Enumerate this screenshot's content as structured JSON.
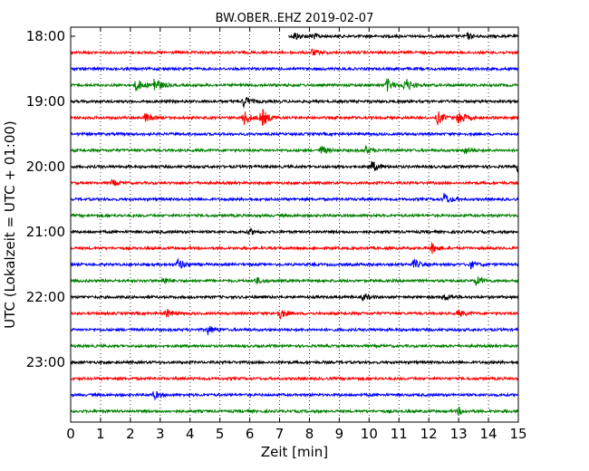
{
  "chart_data": {
    "type": "line",
    "title": "BW.OBER..EHZ 2019-02-07",
    "xlabel": "Zeit  [min]",
    "ylabel": "UTC (Lokalzeit = UTC + 01:00)",
    "xlim": [
      0,
      15
    ],
    "x_ticks": [
      0,
      1,
      2,
      3,
      4,
      5,
      6,
      7,
      8,
      9,
      10,
      11,
      12,
      13,
      14,
      15
    ],
    "x_tick_labels": [
      "0",
      "1",
      "2",
      "3",
      "4",
      "5",
      "6",
      "7",
      "8",
      "9",
      "10",
      "11",
      "12",
      "13",
      "14",
      "15"
    ],
    "y_tick_labels": [
      "18:00",
      "19:00",
      "20:00",
      "21:00",
      "22:00",
      "23:00"
    ],
    "grid": "vertical dotted",
    "colors": [
      "#000000",
      "#ff0000",
      "#0000ff",
      "#008000"
    ],
    "series": [
      {
        "start": "18:00",
        "color": "#000000",
        "x_start": 7.3,
        "events": [
          {
            "x": 7.5,
            "amp": 0.4
          },
          {
            "x": 8.1,
            "amp": 0.3
          },
          {
            "x": 13.3,
            "amp": 0.25
          }
        ]
      },
      {
        "start": "18:15",
        "color": "#ff0000",
        "x_start": 0,
        "events": [
          {
            "x": 8.1,
            "amp": 0.3
          }
        ]
      },
      {
        "start": "18:30",
        "color": "#0000ff",
        "x_start": 0,
        "events": []
      },
      {
        "start": "18:45",
        "color": "#008000",
        "x_start": 0,
        "events": [
          {
            "x": 2.2,
            "amp": 0.6
          },
          {
            "x": 2.8,
            "amp": 0.8
          },
          {
            "x": 10.6,
            "amp": 0.6
          },
          {
            "x": 11.2,
            "amp": 0.7
          }
        ]
      },
      {
        "start": "19:00",
        "color": "#000000",
        "x_start": 0,
        "events": [
          {
            "x": 5.8,
            "amp": 0.5
          }
        ]
      },
      {
        "start": "19:15",
        "color": "#ff0000",
        "x_start": 0,
        "events": [
          {
            "x": 2.5,
            "amp": 0.4
          },
          {
            "x": 5.8,
            "amp": 0.7
          },
          {
            "x": 6.4,
            "amp": 0.9
          },
          {
            "x": 12.3,
            "amp": 0.6
          },
          {
            "x": 13.0,
            "amp": 0.7
          }
        ]
      },
      {
        "start": "19:30",
        "color": "#0000ff",
        "x_start": 0,
        "events": []
      },
      {
        "start": "19:45",
        "color": "#008000",
        "x_start": 0,
        "events": [
          {
            "x": 8.4,
            "amp": 0.4
          },
          {
            "x": 9.9,
            "amp": 0.3
          },
          {
            "x": 13.2,
            "amp": 0.35
          }
        ]
      },
      {
        "start": "20:00",
        "color": "#000000",
        "x_start": 0,
        "events": [
          {
            "x": 10.1,
            "amp": 0.5
          },
          {
            "x": 15.0,
            "amp": 0.6
          }
        ]
      },
      {
        "start": "20:15",
        "color": "#ff0000",
        "x_start": 0,
        "events": [
          {
            "x": 1.4,
            "amp": 0.25
          }
        ]
      },
      {
        "start": "20:30",
        "color": "#0000ff",
        "x_start": 0,
        "events": [
          {
            "x": 12.5,
            "amp": 0.6
          }
        ]
      },
      {
        "start": "20:45",
        "color": "#008000",
        "x_start": 0,
        "events": []
      },
      {
        "start": "21:00",
        "color": "#000000",
        "x_start": 0,
        "events": [
          {
            "x": 6.0,
            "amp": 0.25
          }
        ]
      },
      {
        "start": "21:15",
        "color": "#ff0000",
        "x_start": 0,
        "events": [
          {
            "x": 12.1,
            "amp": 0.45
          }
        ]
      },
      {
        "start": "21:30",
        "color": "#0000ff",
        "x_start": 0,
        "events": [
          {
            "x": 3.6,
            "amp": 0.5
          },
          {
            "x": 11.5,
            "amp": 0.4
          },
          {
            "x": 13.4,
            "amp": 0.3
          }
        ]
      },
      {
        "start": "21:45",
        "color": "#008000",
        "x_start": 0,
        "events": [
          {
            "x": 3.1,
            "amp": 0.3
          },
          {
            "x": 6.2,
            "amp": 0.3
          },
          {
            "x": 13.6,
            "amp": 0.4
          }
        ]
      },
      {
        "start": "22:00",
        "color": "#000000",
        "x_start": 0,
        "events": [
          {
            "x": 9.8,
            "amp": 0.3
          },
          {
            "x": 12.5,
            "amp": 0.35
          }
        ]
      },
      {
        "start": "22:15",
        "color": "#ff0000",
        "x_start": 0,
        "events": [
          {
            "x": 3.2,
            "amp": 0.4
          },
          {
            "x": 7.0,
            "amp": 0.5
          },
          {
            "x": 13.0,
            "amp": 0.3
          }
        ]
      },
      {
        "start": "22:30",
        "color": "#0000ff",
        "x_start": 0,
        "events": [
          {
            "x": 4.6,
            "amp": 0.4
          }
        ]
      },
      {
        "start": "22:45",
        "color": "#008000",
        "x_start": 0,
        "events": []
      },
      {
        "start": "23:00",
        "color": "#000000",
        "x_start": 0,
        "events": []
      },
      {
        "start": "23:15",
        "color": "#ff0000",
        "x_start": 0,
        "events": []
      },
      {
        "start": "23:30",
        "color": "#0000ff",
        "x_start": 0,
        "events": [
          {
            "x": 2.8,
            "amp": 0.35
          }
        ]
      },
      {
        "start": "23:45",
        "color": "#008000",
        "x_start": 0,
        "events": [
          {
            "x": 13.0,
            "amp": 0.3
          }
        ]
      }
    ]
  }
}
